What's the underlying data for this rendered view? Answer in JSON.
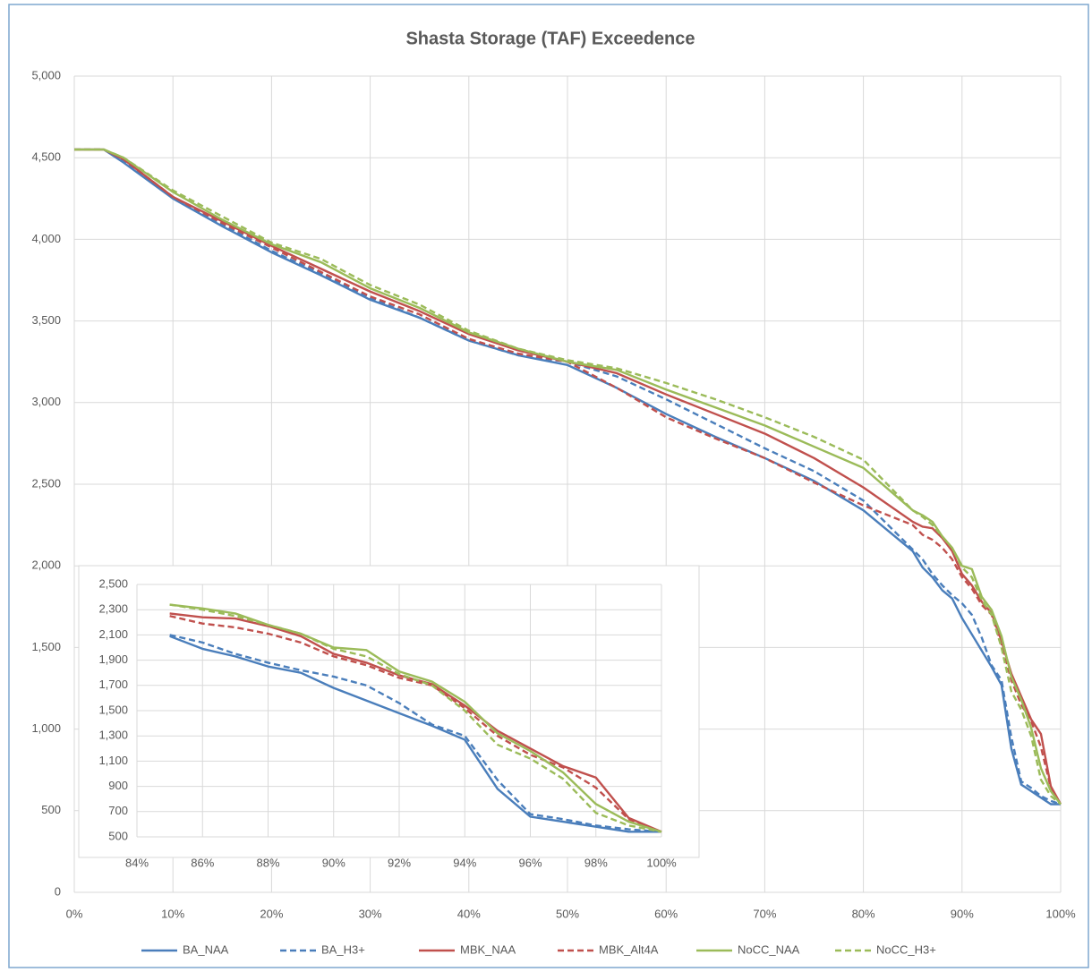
{
  "chart_data": [
    {
      "type": "line",
      "title": "Shasta Storage (TAF) Exceedence",
      "x": [
        0,
        3,
        5,
        10,
        15,
        20,
        25,
        30,
        35,
        40,
        45,
        50,
        55,
        60,
        65,
        70,
        75,
        80,
        85,
        86,
        87,
        88,
        89,
        90,
        91,
        92,
        93,
        94,
        95,
        96,
        97,
        98,
        99,
        100
      ],
      "series": [
        {
          "name": "BA_NAA",
          "color": "#4a7ebb",
          "dashed": false,
          "values": [
            4550,
            4550,
            4470,
            4250,
            4080,
            3920,
            3780,
            3630,
            3520,
            3380,
            3290,
            3230,
            3090,
            2930,
            2790,
            2660,
            2520,
            2340,
            2090,
            1990,
            1930,
            1850,
            1800,
            1680,
            1580,
            1480,
            1380,
            1270,
            880,
            660,
            620,
            580,
            540,
            540
          ]
        },
        {
          "name": "BA_H3+",
          "color": "#4a7ebb",
          "dashed": true,
          "values": [
            4550,
            4550,
            4480,
            4260,
            4090,
            3930,
            3790,
            3640,
            3520,
            3380,
            3290,
            3250,
            3160,
            3020,
            2870,
            2720,
            2580,
            2400,
            2100,
            2040,
            1950,
            1880,
            1820,
            1770,
            1700,
            1560,
            1390,
            1300,
            950,
            680,
            640,
            590,
            560,
            540
          ]
        },
        {
          "name": "MBK_NAA",
          "color": "#c0504d",
          "dashed": false,
          "values": [
            4550,
            4550,
            4490,
            4260,
            4110,
            3960,
            3820,
            3680,
            3560,
            3420,
            3320,
            3250,
            3180,
            3050,
            2930,
            2810,
            2660,
            2480,
            2270,
            2240,
            2230,
            2170,
            2090,
            1950,
            1880,
            1780,
            1710,
            1540,
            1340,
            1200,
            1060,
            970,
            650,
            540
          ]
        },
        {
          "name": "MBK_Alt4A",
          "color": "#c0504d",
          "dashed": true,
          "values": [
            4550,
            4550,
            4490,
            4260,
            4100,
            3950,
            3800,
            3650,
            3540,
            3390,
            3300,
            3250,
            3090,
            2910,
            2780,
            2660,
            2510,
            2370,
            2250,
            2190,
            2160,
            2110,
            2040,
            1930,
            1860,
            1760,
            1700,
            1520,
            1300,
            1150,
            1050,
            890,
            640,
            540
          ]
        },
        {
          "name": "NoCC_NAA",
          "color": "#9bbb59",
          "dashed": false,
          "values": [
            4550,
            4550,
            4500,
            4290,
            4120,
            3970,
            3860,
            3700,
            3580,
            3430,
            3330,
            3250,
            3200,
            3080,
            2970,
            2860,
            2730,
            2600,
            2340,
            2310,
            2270,
            2180,
            2110,
            2000,
            1980,
            1810,
            1730,
            1570,
            1320,
            1180,
            1010,
            760,
            620,
            540
          ]
        },
        {
          "name": "NoCC_H3+",
          "color": "#9bbb59",
          "dashed": true,
          "values": [
            4550,
            4550,
            4500,
            4300,
            4140,
            3980,
            3880,
            3720,
            3600,
            3440,
            3330,
            3260,
            3210,
            3120,
            3020,
            2910,
            2790,
            2650,
            2340,
            2300,
            2250,
            2180,
            2110,
            1990,
            1930,
            1790,
            1700,
            1500,
            1230,
            1120,
            960,
            690,
            590,
            540
          ]
        }
      ],
      "xlim": [
        0,
        100
      ],
      "xticks": [
        {
          "value": 0,
          "label": "0%"
        },
        {
          "value": 10,
          "label": "10%"
        },
        {
          "value": 20,
          "label": "20%"
        },
        {
          "value": 30,
          "label": "30%"
        },
        {
          "value": 40,
          "label": "40%"
        },
        {
          "value": 50,
          "label": "50%"
        },
        {
          "value": 60,
          "label": "60%"
        },
        {
          "value": 70,
          "label": "70%"
        },
        {
          "value": 80,
          "label": "80%"
        },
        {
          "value": 90,
          "label": "90%"
        },
        {
          "value": 100,
          "label": "100%"
        }
      ],
      "ylim": [
        0,
        5000
      ],
      "yticks": [
        0,
        500,
        {
          "value": 1000,
          "label": "1,000"
        },
        {
          "value": 1500,
          "label": "1,500"
        },
        {
          "value": 2000,
          "label": "2,000"
        },
        {
          "value": 2500,
          "label": "2,500"
        },
        {
          "value": 3000,
          "label": "3,000"
        },
        {
          "value": 3500,
          "label": "3,500"
        },
        {
          "value": 4000,
          "label": "4,000"
        },
        {
          "value": 4500,
          "label": "4,500"
        },
        {
          "value": 5000,
          "label": "5,000"
        }
      ],
      "grid": true,
      "legend": "bottom"
    },
    {
      "type": "line",
      "x": [
        85,
        86,
        87,
        88,
        89,
        90,
        91,
        92,
        93,
        94,
        95,
        96,
        97,
        98,
        99,
        100
      ],
      "series": [
        {
          "color": "#4a7ebb",
          "dashed": false,
          "values": [
            2090,
            1990,
            1930,
            1850,
            1800,
            1680,
            1580,
            1480,
            1380,
            1270,
            880,
            660,
            620,
            580,
            540,
            540
          ]
        },
        {
          "color": "#4a7ebb",
          "dashed": true,
          "values": [
            2100,
            2040,
            1950,
            1880,
            1820,
            1770,
            1700,
            1560,
            1390,
            1300,
            950,
            680,
            640,
            590,
            560,
            540
          ]
        },
        {
          "color": "#c0504d",
          "dashed": false,
          "values": [
            2270,
            2240,
            2230,
            2170,
            2090,
            1950,
            1880,
            1780,
            1710,
            1540,
            1340,
            1200,
            1060,
            970,
            650,
            540
          ]
        },
        {
          "color": "#c0504d",
          "dashed": true,
          "values": [
            2250,
            2190,
            2160,
            2110,
            2040,
            1930,
            1860,
            1760,
            1700,
            1520,
            1300,
            1150,
            1050,
            890,
            640,
            540
          ]
        },
        {
          "color": "#9bbb59",
          "dashed": false,
          "values": [
            2340,
            2310,
            2270,
            2180,
            2110,
            2000,
            1980,
            1810,
            1730,
            1570,
            1320,
            1180,
            1010,
            760,
            620,
            540
          ]
        },
        {
          "color": "#9bbb59",
          "dashed": true,
          "values": [
            2340,
            2300,
            2250,
            2180,
            2110,
            1990,
            1930,
            1790,
            1700,
            1500,
            1230,
            1120,
            960,
            690,
            590,
            540
          ]
        }
      ],
      "xlim": [
        84,
        100
      ],
      "xticks": [
        {
          "value": 84,
          "label": "84%"
        },
        {
          "value": 86,
          "label": "86%"
        },
        {
          "value": 88,
          "label": "88%"
        },
        {
          "value": 90,
          "label": "90%"
        },
        {
          "value": 92,
          "label": "92%"
        },
        {
          "value": 94,
          "label": "94%"
        },
        {
          "value": 96,
          "label": "96%"
        },
        {
          "value": 98,
          "label": "98%"
        },
        {
          "value": 100,
          "label": "100%"
        }
      ],
      "ylim": [
        500,
        2500
      ],
      "yticks": [
        500,
        700,
        900,
        {
          "value": 1100,
          "label": "1,100"
        },
        {
          "value": 1300,
          "label": "1,300"
        },
        {
          "value": 1500,
          "label": "1,500"
        },
        {
          "value": 1700,
          "label": "1,700"
        },
        {
          "value": 1900,
          "label": "1,900"
        },
        {
          "value": 2100,
          "label": "2,100"
        },
        {
          "value": 2300,
          "label": "2,300"
        },
        {
          "value": 2500,
          "label": "2,500"
        }
      ],
      "grid": true
    }
  ]
}
